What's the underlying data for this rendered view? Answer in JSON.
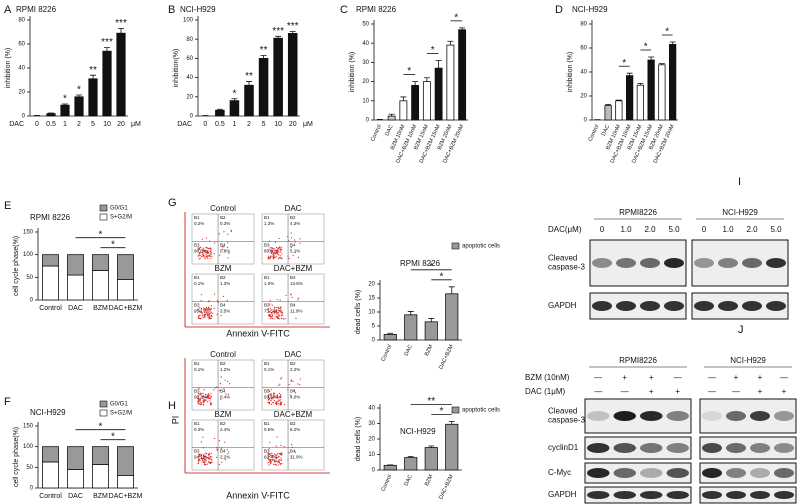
{
  "chart_data": [
    {
      "panel": "A",
      "type": "bar",
      "title": "RPMI 8226",
      "ylabel": "inhibition (%)",
      "x_prefix": "DAC",
      "x_unit": "μM",
      "categories": [
        "0",
        "0.5",
        "1",
        "2",
        "5",
        "10",
        "20"
      ],
      "values": [
        0,
        2,
        9,
        16,
        31,
        54,
        69
      ],
      "errors": [
        0.5,
        0.5,
        1,
        1.5,
        3,
        3,
        4
      ],
      "sig_labels": [
        null,
        null,
        "*",
        "*",
        "**",
        "***",
        "***"
      ],
      "color": "#111111",
      "ylim": [
        0,
        80
      ],
      "yticks": [
        0,
        20,
        40,
        60,
        80
      ]
    },
    {
      "panel": "B",
      "type": "bar",
      "title": "NCI-H929",
      "ylabel": "inhibition(%)",
      "x_prefix": "DAC",
      "x_unit": "μM",
      "categories": [
        "0",
        "0.5",
        "1",
        "2",
        "5",
        "10",
        "20"
      ],
      "values": [
        0,
        6,
        16,
        32,
        60,
        81,
        86
      ],
      "errors": [
        0.5,
        1,
        2,
        4,
        3,
        2,
        2
      ],
      "sig_labels": [
        null,
        null,
        "*",
        "**",
        "**",
        "***",
        "***"
      ],
      "color": "#111111",
      "ylim": [
        0,
        100
      ],
      "yticks": [
        0,
        20,
        40,
        60,
        80,
        100
      ]
    },
    {
      "panel": "C",
      "type": "bar",
      "title": "RPMI 8226",
      "ylabel": "inhibition (%)",
      "categories": [
        "Control",
        "DAC",
        "BZM 10nM",
        "DAC+BZM 10nM",
        "BZM 15nM",
        "DAC+BZM 15nM",
        "BZM 20nM",
        "DAC+BZM 20nM"
      ],
      "values": [
        0,
        2,
        10,
        18,
        20,
        27,
        39,
        47
      ],
      "errors": [
        0.3,
        1,
        2,
        2,
        2,
        4,
        2,
        1
      ],
      "colors": [
        "#ffffff",
        "#cccccc",
        "#ffffff",
        "#111111",
        "#ffffff",
        "#111111",
        "#ffffff",
        "#111111"
      ],
      "ylim": [
        0,
        50
      ],
      "yticks": [
        0,
        10,
        20,
        30,
        40,
        50
      ],
      "brackets": [
        {
          "label": "*",
          "span": [
            2,
            3
          ]
        },
        {
          "label": "*",
          "span": [
            4,
            5
          ]
        },
        {
          "label": "*",
          "span": [
            6,
            7
          ]
        }
      ]
    },
    {
      "panel": "D",
      "type": "bar",
      "title": "NCI-H929",
      "ylabel": "inhibition (%)",
      "categories": [
        "Control",
        "DAC",
        "BZM 10nM",
        "DAC+BZM 10nM",
        "BZM 15nM",
        "DAC+BZM 15nM",
        "BZM 20nM",
        "DAC+BZM 20nM"
      ],
      "values": [
        0,
        12,
        16,
        37,
        29,
        50,
        46,
        63
      ],
      "errors": [
        0.3,
        1,
        0.5,
        2,
        1.5,
        2.5,
        1,
        2
      ],
      "colors": [
        "#ffffff",
        "#bbbbbb",
        "#ffffff",
        "#111111",
        "#ffffff",
        "#111111",
        "#ffffff",
        "#111111"
      ],
      "ylim": [
        0,
        80
      ],
      "yticks": [
        0,
        20,
        40,
        60,
        80
      ],
      "brackets": [
        {
          "label": "*",
          "span": [
            2,
            3
          ]
        },
        {
          "label": "*",
          "span": [
            4,
            5
          ]
        },
        {
          "label": "*",
          "span": [
            6,
            7
          ]
        }
      ]
    },
    {
      "panel": "E",
      "type": "stacked_bar",
      "title": "RPMI 8226",
      "ylabel": "cell cycle phase(%)",
      "categories": [
        "Control",
        "DAC",
        "BZM",
        "DAC+BZM"
      ],
      "series": [
        {
          "name": "G0/G1",
          "color": "#999999",
          "values": [
            25,
            45,
            35,
            55
          ]
        },
        {
          "name": "S+G2/M",
          "color": "#ffffff",
          "values": [
            75,
            55,
            65,
            45
          ]
        }
      ],
      "ylim": [
        0,
        150
      ],
      "yticks": [
        0,
        50,
        100,
        150
      ],
      "brackets": [
        {
          "label": "*",
          "span": [
            1,
            3
          ]
        },
        {
          "label": "*",
          "span": [
            2,
            3
          ]
        }
      ]
    },
    {
      "panel": "F",
      "type": "stacked_bar",
      "title": "NCI-H929",
      "ylabel": "cell cycle phase(%)",
      "categories": [
        "Control",
        "DAC",
        "BZM",
        "DAC+BZM"
      ],
      "series": [
        {
          "name": "G0/G1",
          "color": "#999999",
          "values": [
            37,
            55,
            43,
            70
          ]
        },
        {
          "name": "S+G2/M",
          "color": "#ffffff",
          "values": [
            63,
            45,
            57,
            30
          ]
        }
      ],
      "ylim": [
        0,
        150
      ],
      "yticks": [
        0,
        50,
        100,
        150
      ],
      "brackets": [
        {
          "label": "*",
          "span": [
            1,
            3
          ]
        },
        {
          "label": "*",
          "span": [
            2,
            3
          ]
        }
      ]
    },
    {
      "type": "bar",
      "title": "RPMI 8226",
      "ylabel": "dead cells (%)",
      "categories": [
        "Control",
        "DAC",
        "BZM",
        "DAC+BZM"
      ],
      "series": [
        {
          "name": "apoptotic cells",
          "color": "#999999",
          "values": [
            2,
            9,
            6.5,
            16.5
          ],
          "errors": [
            0.4,
            1.2,
            1.2,
            2.5
          ]
        }
      ],
      "ylim": [
        0,
        20
      ],
      "yticks": [
        0,
        5,
        10,
        15,
        20
      ],
      "brackets": [
        {
          "label": "*",
          "span": [
            1,
            3
          ]
        },
        {
          "label": "*",
          "span": [
            2,
            3
          ]
        }
      ]
    },
    {
      "type": "bar",
      "title": "NCI-H929",
      "ylabel": "dead cells (%)",
      "categories": [
        "Control",
        "DAC",
        "BZM",
        "DAC+BZM"
      ],
      "series": [
        {
          "name": "apoptotic cells",
          "color": "#999999",
          "values": [
            3,
            8,
            14.5,
            29.5
          ],
          "errors": [
            0.3,
            0.7,
            1,
            1.8
          ]
        }
      ],
      "ylim": [
        0,
        40
      ],
      "yticks": [
        0,
        10,
        20,
        30,
        40
      ],
      "brackets": [
        {
          "label": "**",
          "span": [
            1,
            3
          ]
        },
        {
          "label": "*",
          "span": [
            2,
            3
          ]
        }
      ]
    }
  ],
  "flow": [
    {
      "panel": "G",
      "xlabel": "Annexin V-FITC",
      "samples": [
        {
          "name": "Control",
          "quadrants": [
            [
              "B1",
              "0.2%"
            ],
            [
              "B2",
              "0.3%"
            ],
            [
              "B3",
              "98.8%"
            ],
            [
              "B4",
              "0.8%"
            ]
          ]
        },
        {
          "name": "DAC",
          "quadrants": [
            [
              "B1",
              "1.3%"
            ],
            [
              "B2",
              "4.3%"
            ],
            [
              "B3",
              "89.3%"
            ],
            [
              "B4",
              "5.1%"
            ]
          ]
        },
        {
          "name": "BZM",
          "quadrants": [
            [
              "B1",
              "0.1%"
            ],
            [
              "B2",
              "1.3%"
            ],
            [
              "B3",
              "95.1%"
            ],
            [
              "B4",
              "3.5%"
            ]
          ]
        },
        {
          "name": "DAC+BZM",
          "quadrants": [
            [
              "B1",
              "1.0%"
            ],
            [
              "B2",
              "13.6%"
            ],
            [
              "B3",
              "73.5%"
            ],
            [
              "B4",
              "11.9%"
            ]
          ]
        }
      ]
    },
    {
      "panel": "H",
      "xlabel": "Annexin V-FITC",
      "ylabel": "PI",
      "samples": [
        {
          "name": "Control",
          "quadrants": [
            [
              "B1",
              "0.1%"
            ],
            [
              "B2",
              "1.2%"
            ],
            [
              "B3",
              "98.3%"
            ],
            [
              "B4",
              "0.4%"
            ]
          ]
        },
        {
          "name": "DAC",
          "quadrants": [
            [
              "B1",
              "0.1%"
            ],
            [
              "B2",
              "2.2%"
            ],
            [
              "B3",
              "93.5%"
            ],
            [
              "B4",
              "4.0%"
            ]
          ]
        },
        {
          "name": "BZM",
          "quadrants": [
            [
              "B1",
              "0.3%"
            ],
            [
              "B2",
              "2.4%"
            ],
            [
              "B3",
              "94.1%"
            ],
            [
              "B4",
              "2.2%"
            ]
          ]
        },
        {
          "name": "DAC+BZM",
          "quadrants": [
            [
              "B1",
              "0.5%"
            ],
            [
              "B2",
              "6.2%"
            ],
            [
              "B3",
              "82.4%"
            ],
            [
              "B4",
              "11.0%"
            ]
          ]
        }
      ]
    }
  ],
  "blots": [
    {
      "panel": "I",
      "groups": [
        "RPMI8226",
        "NCI-H929"
      ],
      "conditions": [
        {
          "label": "DAC(μM)",
          "levels": [
            "0",
            "1.0",
            "2.0",
            "5.0"
          ]
        }
      ],
      "rows": [
        [
          "Cleaved",
          "caspase-3"
        ],
        [
          "GAPDH"
        ]
      ]
    },
    {
      "panel": "J",
      "groups": [
        "RPMI8226",
        "NCI-H929"
      ],
      "conditions": [
        {
          "label": "BZM (10nM)",
          "levels": [
            "—",
            "+",
            "+",
            "—"
          ]
        },
        {
          "label": "DAC (1μM)",
          "levels": [
            "—",
            "—",
            "+",
            "+"
          ]
        }
      ],
      "rows": [
        [
          "Cleaved",
          "caspase-3"
        ],
        [
          "cyclinD1"
        ],
        [
          "C-Myc"
        ],
        [
          "GAPDH"
        ]
      ]
    }
  ]
}
